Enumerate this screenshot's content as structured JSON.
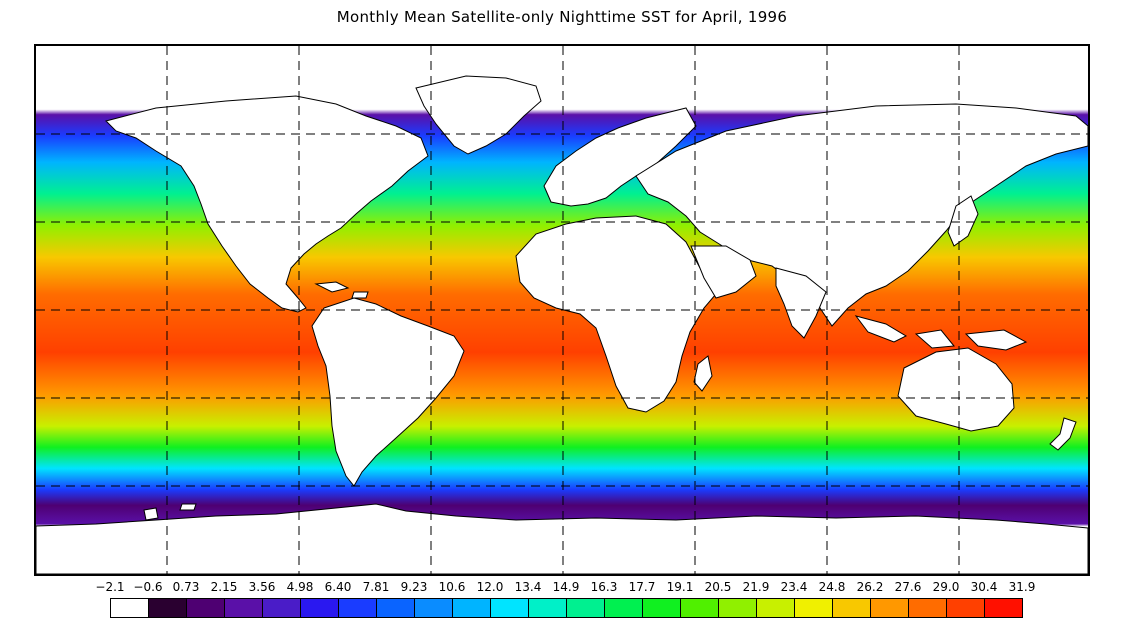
{
  "title": "Monthly Mean Satellite-only Nighttime SST for April, 1996",
  "map": {
    "projection": "equirectangular",
    "gridlines": "dashed",
    "land_color": "#ffffff",
    "coastline_color": "#000000"
  },
  "legend": {
    "ticks": [
      "-2.1",
      "-0.6",
      "0.73",
      "2.15",
      "3.56",
      "4.98",
      "6.40",
      "7.81",
      "9.23",
      "10.6",
      "12.0",
      "13.4",
      "14.9",
      "16.3",
      "17.7",
      "19.1",
      "20.5",
      "21.9",
      "23.4",
      "24.8",
      "26.2",
      "27.6",
      "29.0",
      "30.4",
      "31.9"
    ],
    "colors": [
      "#ffffff",
      "#2a0030",
      "#4e0072",
      "#5a10a8",
      "#4a1cc8",
      "#2a18f0",
      "#1a3cff",
      "#0a64ff",
      "#0a8cff",
      "#00b4ff",
      "#00e4ff",
      "#00f0c8",
      "#00f090",
      "#00f050",
      "#10f020",
      "#50f000",
      "#90f000",
      "#c8f000",
      "#f0f000",
      "#f8c800",
      "#ff9800",
      "#ff6c00",
      "#ff4000",
      "#ff1000"
    ]
  }
}
